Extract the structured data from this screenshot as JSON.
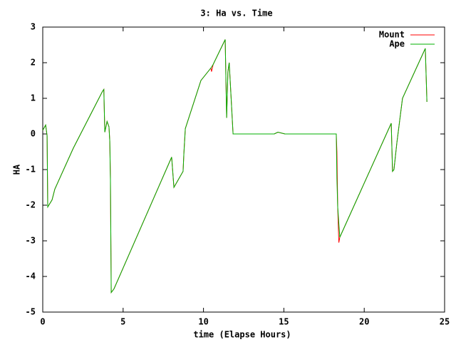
{
  "chart_data": {
    "type": "line",
    "title": "3: Ha vs. Time",
    "xlabel": "time (Elapse Hours)",
    "ylabel": "HA",
    "xlim": [
      0,
      25
    ],
    "xticks": [
      0,
      5,
      10,
      15,
      20,
      25
    ],
    "ylim": [
      -5,
      3
    ],
    "yticks": [
      -5,
      -4,
      -3,
      -2,
      -1,
      0,
      1,
      2,
      3
    ],
    "legend": "top-right",
    "grid": false,
    "series": [
      {
        "name": "Mount",
        "color": "#ff0000",
        "x": [
          0,
          0.18,
          0.27,
          0.31,
          0.58,
          0.75,
          1.9,
          3.72,
          3.8,
          3.86,
          4.0,
          4.12,
          4.17,
          4.21,
          4.26,
          4.43,
          8.02,
          8.16,
          8.73,
          8.78,
          8.87,
          9.84,
          10.46,
          10.5,
          10.6,
          11.35,
          11.44,
          11.52,
          11.6,
          11.84,
          14.4,
          14.63,
          15.07,
          18.26,
          18.3,
          18.35,
          18.42,
          18.48,
          21.68,
          21.76,
          21.85,
          22.03,
          22.38,
          23.8,
          23.9
        ],
        "values": [
          0.1,
          0.25,
          -0.05,
          -2.05,
          -1.85,
          -1.55,
          -0.4,
          1.2,
          1.25,
          0.05,
          0.35,
          0.2,
          -0.2,
          -1.25,
          -4.45,
          -4.35,
          -0.65,
          -1.5,
          -1.05,
          -0.55,
          0.15,
          1.5,
          1.85,
          1.75,
          1.95,
          2.65,
          0.45,
          1.75,
          2.0,
          0.0,
          0.0,
          0.05,
          0.0,
          0.0,
          -0.5,
          -2.05,
          -3.05,
          -2.9,
          0.3,
          -1.05,
          -1.0,
          -0.25,
          1.0,
          2.4,
          0.9
        ]
      },
      {
        "name": "Ape",
        "color": "#00b000",
        "x": [
          0,
          0.18,
          0.27,
          0.31,
          0.58,
          0.75,
          1.9,
          3.72,
          3.8,
          3.86,
          4.0,
          4.12,
          4.17,
          4.21,
          4.26,
          4.43,
          8.02,
          8.16,
          8.73,
          8.78,
          8.87,
          9.84,
          10.46,
          10.6,
          11.35,
          11.44,
          11.52,
          11.6,
          11.84,
          14.4,
          14.63,
          15.07,
          18.26,
          18.3,
          18.35,
          18.48,
          21.68,
          21.76,
          21.85,
          22.03,
          22.38,
          23.8,
          23.9
        ],
        "values": [
          0.1,
          0.25,
          -0.05,
          -2.05,
          -1.85,
          -1.55,
          -0.4,
          1.2,
          1.25,
          0.05,
          0.35,
          0.2,
          -0.2,
          -1.25,
          -4.45,
          -4.35,
          -0.65,
          -1.5,
          -1.05,
          -0.55,
          0.15,
          1.5,
          1.85,
          1.95,
          2.65,
          0.45,
          1.75,
          2.0,
          0.0,
          0.0,
          0.05,
          0.0,
          0.0,
          -1.25,
          -2.05,
          -2.9,
          0.3,
          -1.05,
          -1.0,
          -0.25,
          1.0,
          2.4,
          0.9
        ]
      }
    ]
  }
}
